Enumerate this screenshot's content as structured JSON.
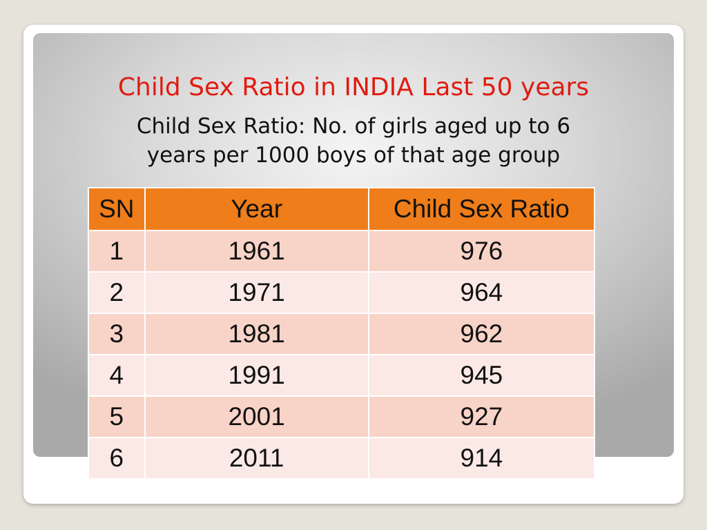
{
  "slide": {
    "title": "Child Sex Ratio in INDIA Last 50 years",
    "subtitle_line1": "Child Sex Ratio: No. of girls aged up to 6",
    "subtitle_line2": "years per 1000 boys of that age group"
  },
  "table": {
    "headers": [
      "SN",
      "Year",
      "Child Sex Ratio"
    ],
    "rows": [
      [
        "1",
        "1961",
        "976"
      ],
      [
        "2",
        "1971",
        "964"
      ],
      [
        "3",
        "1981",
        "962"
      ],
      [
        "4",
        "1991",
        "945"
      ],
      [
        "5",
        "2001",
        "927"
      ],
      [
        "6",
        "2011",
        "914"
      ]
    ]
  },
  "colors": {
    "title": "#e01b10",
    "header_fill": "#ef7d1a",
    "row_odd": "#f8d3c7",
    "row_even": "#fbe9e5"
  }
}
